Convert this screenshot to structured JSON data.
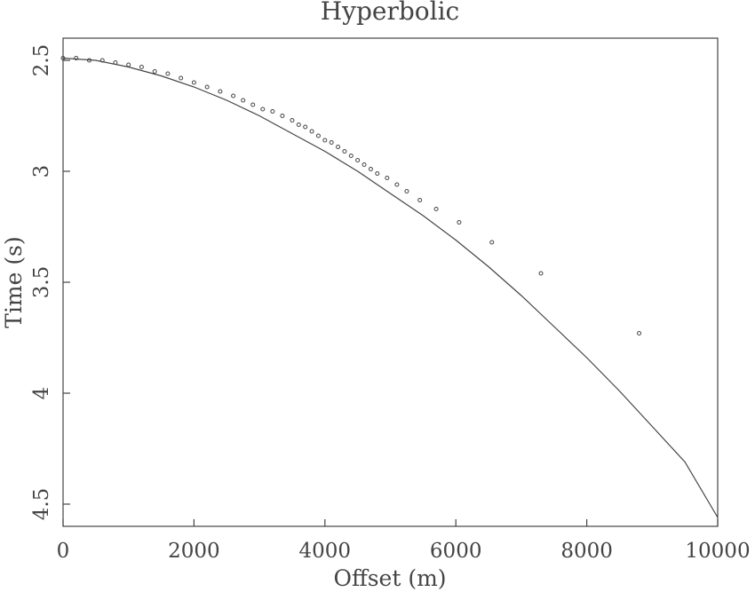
{
  "chart_data": {
    "type": "scatter",
    "title": "Hyperbolic",
    "xlabel": "Offset (m)",
    "ylabel": "Time (s)",
    "xlim": [
      0,
      10000
    ],
    "ylim": [
      4.6,
      2.4
    ],
    "y_axis_inverted": true,
    "grid": false,
    "x_ticks": [
      0,
      2000,
      4000,
      6000,
      8000,
      10000
    ],
    "y_ticks": [
      2.5,
      3,
      3.5,
      4,
      4.5
    ],
    "x_tick_labels": [
      "0",
      "2000",
      "4000",
      "6000",
      "8000",
      "10000"
    ],
    "y_tick_labels": [
      "2.5",
      "3",
      "3.5",
      "4",
      "4.5"
    ],
    "series": [
      {
        "kind": "line",
        "color": "#444444",
        "x": [
          0,
          500,
          1000,
          1500,
          2000,
          2500,
          3000,
          3500,
          4000,
          4500,
          5000,
          5500,
          6000,
          6500,
          7000,
          7500,
          8000,
          8500,
          9000,
          9500,
          10000
        ],
        "y": [
          2.49,
          2.5,
          2.53,
          2.57,
          2.62,
          2.68,
          2.75,
          2.83,
          2.91,
          3.0,
          3.1,
          3.2,
          3.31,
          3.43,
          3.56,
          3.7,
          3.84,
          3.99,
          4.15,
          4.31,
          4.56
        ]
      },
      {
        "kind": "points",
        "color": "#444444",
        "x": [
          0,
          200,
          400,
          600,
          800,
          1000,
          1200,
          1400,
          1600,
          1800,
          2000,
          2200,
          2400,
          2600,
          2750,
          2900,
          3050,
          3200,
          3350,
          3500,
          3600,
          3700,
          3800,
          3900,
          4000,
          4100,
          4200,
          4300,
          4400,
          4500,
          4600,
          4700,
          4800,
          4950,
          5100,
          5250,
          5450,
          5700,
          6050,
          6550,
          7300,
          8800
        ],
        "y": [
          2.49,
          2.49,
          2.5,
          2.5,
          2.51,
          2.52,
          2.53,
          2.55,
          2.56,
          2.58,
          2.6,
          2.62,
          2.64,
          2.66,
          2.68,
          2.7,
          2.72,
          2.73,
          2.75,
          2.77,
          2.79,
          2.8,
          2.82,
          2.84,
          2.86,
          2.87,
          2.89,
          2.91,
          2.93,
          2.95,
          2.97,
          2.99,
          3.01,
          3.03,
          3.06,
          3.09,
          3.13,
          3.17,
          3.23,
          3.32,
          3.46,
          3.73
        ]
      }
    ]
  }
}
